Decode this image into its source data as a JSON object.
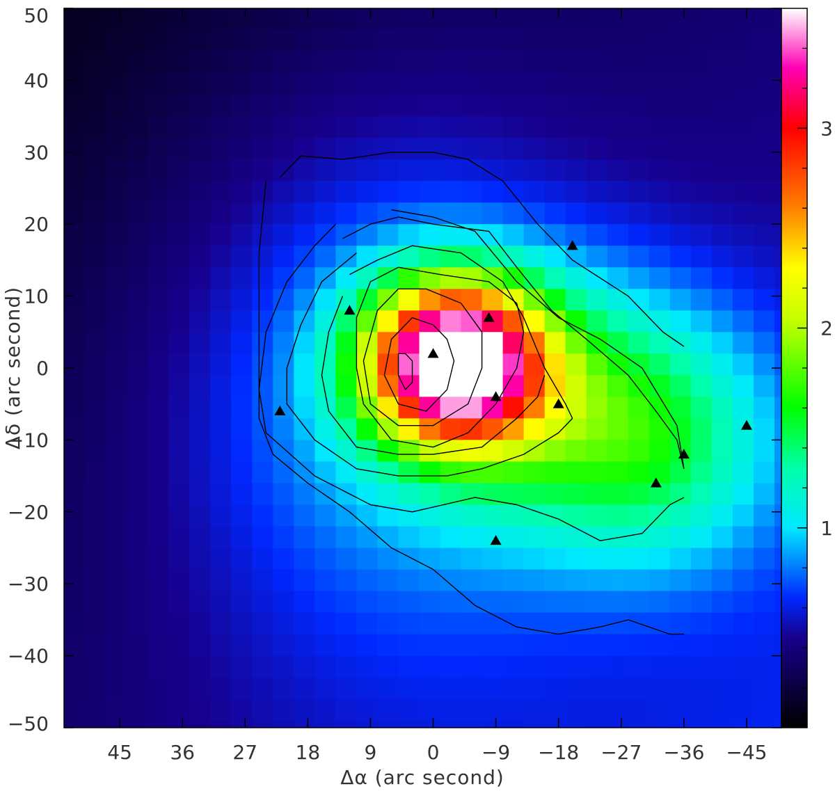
{
  "chart_data": {
    "type": "heatmap",
    "title": "",
    "xlabel": "Δα (arc second)",
    "ylabel": "Δδ (arc second)",
    "xlim": [
      53,
      -50
    ],
    "ylim": [
      -50,
      50
    ],
    "x_ticks": [
      45,
      36,
      27,
      18,
      9,
      0,
      -9,
      -18,
      -27,
      -36,
      -45
    ],
    "x_tick_labels": [
      "45",
      "36",
      "27",
      "18",
      "9",
      "0",
      "−9",
      "−18",
      "−27",
      "−36",
      "−45"
    ],
    "y_ticks": [
      50,
      40,
      30,
      20,
      10,
      0,
      -10,
      -20,
      -30,
      -40,
      -50
    ],
    "y_tick_labels": [
      "50",
      "40",
      "30",
      "20",
      "10",
      "0",
      "−10",
      "−20",
      "−30",
      "−40",
      "−50"
    ],
    "colorbar": {
      "range": [
        0,
        3.6
      ],
      "major_ticks": [
        1,
        2,
        3
      ],
      "major_tick_labels": [
        "1",
        "2",
        "3"
      ],
      "minor_ticks": [
        0.2,
        0.4,
        0.6,
        0.8,
        1.2,
        1.4,
        1.6,
        1.8,
        2.2,
        2.4,
        2.6,
        2.8,
        3.2,
        3.4
      ],
      "colormap_stops": [
        {
          "value": 0.0,
          "color": "#000000"
        },
        {
          "value": 0.45,
          "color": "#18008c"
        },
        {
          "value": 0.65,
          "color": "#0028ff"
        },
        {
          "value": 1.0,
          "color": "#00e8ff"
        },
        {
          "value": 1.3,
          "color": "#00ffaa"
        },
        {
          "value": 1.6,
          "color": "#00ff00"
        },
        {
          "value": 2.05,
          "color": "#c8ff00"
        },
        {
          "value": 2.3,
          "color": "#ffff00"
        },
        {
          "value": 2.6,
          "color": "#ff8000"
        },
        {
          "value": 3.0,
          "color": "#ff0000"
        },
        {
          "value": 3.3,
          "color": "#ff00b4"
        },
        {
          "value": 3.6,
          "color": "#ffffff"
        }
      ]
    },
    "intensity_model": {
      "background": {
        "value": 0.36,
        "x_gradient": 0.0028,
        "y_gradient": 0.0025
      },
      "components": [
        {
          "x0": -3,
          "y0": 1,
          "amplitude": 2.9,
          "sigma_x": 9,
          "sigma_y": 8
        },
        {
          "x0": -18,
          "y0": -5,
          "amplitude": 0.85,
          "sigma_x": 17,
          "sigma_y": 13
        },
        {
          "x0": -33,
          "y0": -12,
          "amplitude": 0.55,
          "sigma_x": 12,
          "sigma_y": 12
        },
        {
          "x0": 8,
          "y0": -2,
          "amplitude": 0.5,
          "sigma_x": 22,
          "sigma_y": 28
        }
      ]
    },
    "contours": [
      [
        [
          22,
          26.5
        ],
        [
          19,
          29.5
        ],
        [
          13,
          29
        ],
        [
          6,
          30
        ],
        [
          0,
          30
        ],
        [
          -5,
          29
        ],
        [
          -10,
          26
        ],
        [
          -15,
          20
        ],
        [
          -18,
          17
        ],
        [
          -20,
          15
        ],
        [
          -28,
          10
        ],
        [
          -33,
          5
        ],
        [
          -36,
          3
        ]
      ],
      [
        [
          24,
          26
        ],
        [
          25,
          16
        ],
        [
          25,
          -2
        ],
        [
          25,
          -7
        ],
        [
          23,
          -12
        ],
        [
          18,
          -16
        ],
        [
          12,
          -20
        ],
        [
          6,
          -25
        ],
        [
          0,
          -28
        ],
        [
          -6,
          -33
        ],
        [
          -12,
          -36
        ],
        [
          -18,
          -37
        ],
        [
          -24,
          -36
        ],
        [
          -28,
          -35
        ],
        [
          -34,
          -37
        ],
        [
          -36,
          -37
        ]
      ],
      [
        [
          6,
          22
        ],
        [
          0,
          21
        ],
        [
          -6,
          19
        ],
        [
          -12,
          12
        ],
        [
          -18,
          7
        ],
        [
          -24,
          4
        ],
        [
          -30,
          0
        ],
        [
          -35,
          -8
        ],
        [
          -36,
          -14
        ]
      ],
      [
        [
          14,
          20
        ],
        [
          17,
          17
        ],
        [
          21,
          12
        ],
        [
          24,
          5
        ],
        [
          25,
          -3
        ],
        [
          24,
          -9
        ],
        [
          17,
          -15
        ],
        [
          9,
          -19
        ],
        [
          3,
          -20
        ],
        [
          -6,
          -18
        ],
        [
          -12,
          -19
        ],
        [
          -18,
          -21
        ],
        [
          -24,
          -24
        ],
        [
          -30,
          -23
        ],
        [
          -34,
          -19
        ],
        [
          -36,
          -18
        ]
      ],
      [
        [
          13,
          18
        ],
        [
          9,
          20
        ],
        [
          5,
          21
        ],
        [
          0,
          20
        ],
        [
          -8,
          19
        ],
        [
          -12,
          14
        ],
        [
          -17,
          8
        ],
        [
          -22,
          4
        ],
        [
          -28,
          -1
        ],
        [
          -32,
          -6
        ],
        [
          -35,
          -10
        ],
        [
          -36,
          -14
        ]
      ],
      [
        [
          11,
          16
        ],
        [
          16,
          12
        ],
        [
          19,
          6
        ],
        [
          21,
          0
        ],
        [
          21,
          -5
        ],
        [
          17,
          -10
        ],
        [
          11,
          -14
        ],
        [
          5,
          -15
        ],
        [
          -2,
          -15
        ],
        [
          -7,
          -14
        ],
        [
          -13,
          -12
        ],
        [
          -18,
          -9
        ],
        [
          -20,
          -7
        ]
      ],
      [
        [
          12,
          13
        ],
        [
          8,
          15
        ],
        [
          3,
          17
        ],
        [
          -4,
          16
        ],
        [
          -10,
          12
        ],
        [
          -13,
          7
        ],
        [
          -16,
          0
        ],
        [
          -19,
          -5
        ],
        [
          -20,
          -7
        ]
      ],
      [
        [
          13,
          10
        ],
        [
          15,
          5
        ],
        [
          16,
          -1
        ],
        [
          15,
          -6
        ],
        [
          11,
          -11
        ],
        [
          5,
          -12
        ],
        [
          0,
          -12
        ],
        [
          -7,
          -11
        ],
        [
          -12,
          -7
        ],
        [
          -15,
          -4
        ],
        [
          -16,
          -1
        ]
      ],
      [
        [
          5,
          14
        ],
        [
          9,
          12
        ],
        [
          11,
          7
        ],
        [
          11,
          0
        ],
        [
          10,
          -5
        ],
        [
          6,
          -10
        ],
        [
          0,
          -11
        ],
        [
          -5,
          -9
        ],
        [
          -9,
          -5
        ],
        [
          -12,
          0
        ],
        [
          -13,
          5
        ],
        [
          -12,
          9
        ],
        [
          -8,
          12
        ],
        [
          -1,
          13
        ],
        [
          5,
          14
        ]
      ],
      [
        [
          5,
          11
        ],
        [
          8,
          8
        ],
        [
          10,
          1
        ],
        [
          9,
          -5
        ],
        [
          5,
          -8
        ],
        [
          0,
          -8
        ],
        [
          -5,
          -5
        ],
        [
          -7,
          0
        ],
        [
          -7,
          5
        ],
        [
          -4,
          9
        ],
        [
          1,
          11
        ],
        [
          5,
          11
        ]
      ],
      [
        [
          3,
          7
        ],
        [
          6,
          4
        ],
        [
          7,
          -1
        ],
        [
          5,
          -5
        ],
        [
          1,
          -6
        ],
        [
          -2,
          -3
        ],
        [
          -3,
          1
        ],
        [
          -2,
          4
        ],
        [
          0,
          6
        ],
        [
          3,
          7
        ]
      ],
      [
        [
          5,
          2
        ],
        [
          5,
          -1
        ],
        [
          4,
          -3
        ],
        [
          3,
          -2
        ],
        [
          3,
          1
        ],
        [
          4,
          2
        ],
        [
          5,
          2
        ]
      ]
    ],
    "markers": {
      "symbol": "filled-triangle",
      "color": "#000000",
      "points": [
        {
          "x": -20,
          "y": 17
        },
        {
          "x": 12,
          "y": 8
        },
        {
          "x": -8,
          "y": 7
        },
        {
          "x": 0,
          "y": 2
        },
        {
          "x": 22,
          "y": -6
        },
        {
          "x": -9,
          "y": -4
        },
        {
          "x": -18,
          "y": -5
        },
        {
          "x": -45,
          "y": -8
        },
        {
          "x": -36,
          "y": -12
        },
        {
          "x": -32,
          "y": -16
        },
        {
          "x": -9,
          "y": -24
        }
      ]
    }
  }
}
